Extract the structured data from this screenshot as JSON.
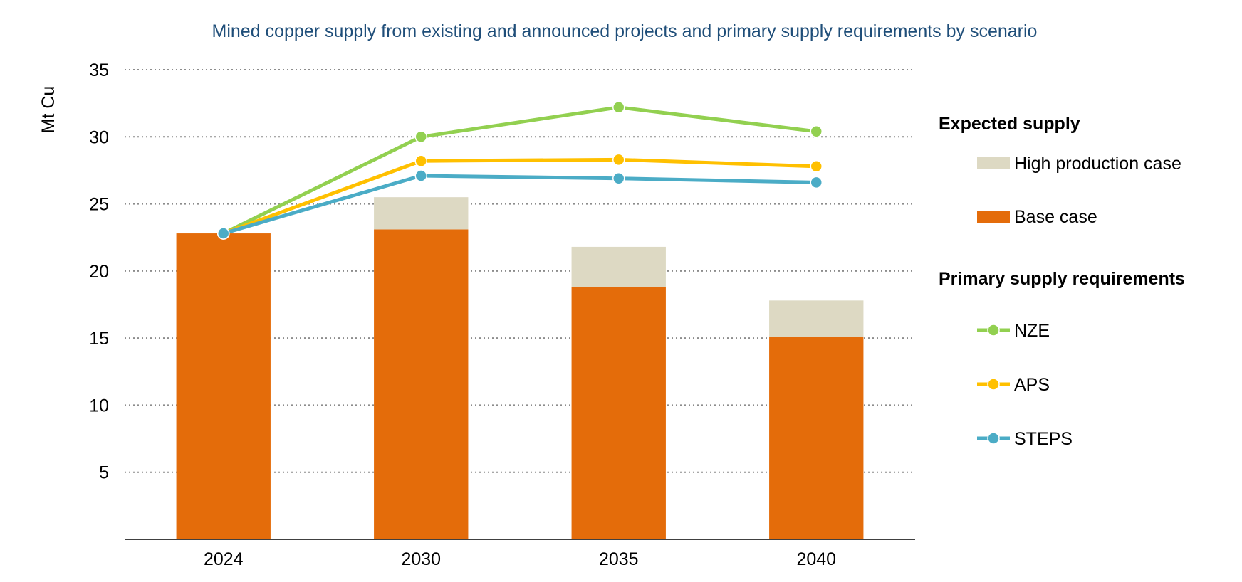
{
  "chart_data": {
    "type": "bar",
    "title": "Mined copper supply from existing and announced projects and primary supply requirements by scenario",
    "xlabel": "",
    "ylabel": "Mt Cu",
    "ylim": [
      0,
      35
    ],
    "yticks": [
      5,
      10,
      15,
      20,
      25,
      30,
      35
    ],
    "grid": true,
    "legend_position": "right",
    "categories": [
      "2024",
      "2030",
      "2035",
      "2040"
    ],
    "bar_groups": [
      {
        "heading": "Expected supply",
        "stacked": true,
        "series": [
          {
            "name": "Base case",
            "color": "#e46c0a",
            "values": [
              22.8,
              23.1,
              18.8,
              15.1
            ]
          },
          {
            "name": "High production case",
            "color": "#ddd9c3",
            "values": [
              0,
              2.4,
              3.0,
              2.7
            ]
          }
        ]
      }
    ],
    "line_groups": [
      {
        "heading": "Primary supply requirements",
        "series": [
          {
            "name": "NZE",
            "color": "#92d050",
            "values": [
              22.8,
              30.0,
              32.2,
              30.4
            ]
          },
          {
            "name": "APS",
            "color": "#ffc000",
            "values": [
              22.8,
              28.2,
              28.3,
              27.8
            ]
          },
          {
            "name": "STEPS",
            "color": "#4bacc6",
            "values": [
              22.8,
              27.1,
              26.9,
              26.6
            ]
          }
        ]
      }
    ]
  }
}
